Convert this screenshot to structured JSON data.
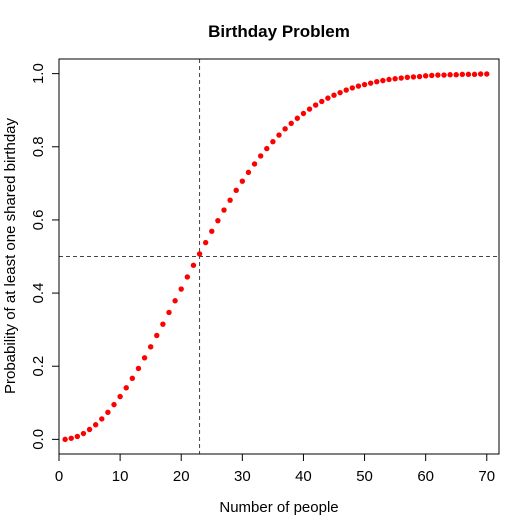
{
  "chart_data": {
    "type": "scatter",
    "title": "Birthday Problem",
    "xlabel": "Number of people",
    "ylabel": "Probability of at least one shared birthday",
    "xlim": [
      0,
      72
    ],
    "ylim": [
      -0.04,
      1.04
    ],
    "xticks": [
      0,
      10,
      20,
      30,
      40,
      50,
      60,
      70
    ],
    "xtick_labels": [
      "0",
      "10",
      "20",
      "30",
      "40",
      "50",
      "60",
      "70"
    ],
    "yticks": [
      0.0,
      0.2,
      0.4,
      0.6,
      0.8,
      1.0
    ],
    "ytick_labels": [
      "0.0",
      "0.2",
      "0.4",
      "0.6",
      "0.8",
      "1.0"
    ],
    "grid": false,
    "point_color": "#ff0000",
    "reference_lines": {
      "vertical_x": 23,
      "horizontal_y": 0.5,
      "color": "#444444",
      "style": "dashed"
    },
    "x": [
      1,
      2,
      3,
      4,
      5,
      6,
      7,
      8,
      9,
      10,
      11,
      12,
      13,
      14,
      15,
      16,
      17,
      18,
      19,
      20,
      21,
      22,
      23,
      24,
      25,
      26,
      27,
      28,
      29,
      30,
      31,
      32,
      33,
      34,
      35,
      36,
      37,
      38,
      39,
      40,
      41,
      42,
      43,
      44,
      45,
      46,
      47,
      48,
      49,
      50,
      51,
      52,
      53,
      54,
      55,
      56,
      57,
      58,
      59,
      60,
      61,
      62,
      63,
      64,
      65,
      66,
      67,
      68,
      69,
      70
    ],
    "y": [
      0.0,
      0.003,
      0.008,
      0.016,
      0.027,
      0.04,
      0.056,
      0.074,
      0.095,
      0.117,
      0.141,
      0.167,
      0.194,
      0.223,
      0.253,
      0.284,
      0.315,
      0.347,
      0.379,
      0.411,
      0.444,
      0.476,
      0.507,
      0.538,
      0.569,
      0.598,
      0.627,
      0.654,
      0.681,
      0.706,
      0.73,
      0.753,
      0.775,
      0.795,
      0.814,
      0.832,
      0.849,
      0.864,
      0.878,
      0.891,
      0.903,
      0.914,
      0.924,
      0.933,
      0.941,
      0.948,
      0.955,
      0.961,
      0.966,
      0.97,
      0.974,
      0.978,
      0.981,
      0.984,
      0.986,
      0.988,
      0.99,
      0.991,
      0.992,
      0.994,
      0.995,
      0.996,
      0.996,
      0.997,
      0.997,
      0.998,
      0.998,
      0.998,
      0.999,
      0.999
    ]
  }
}
